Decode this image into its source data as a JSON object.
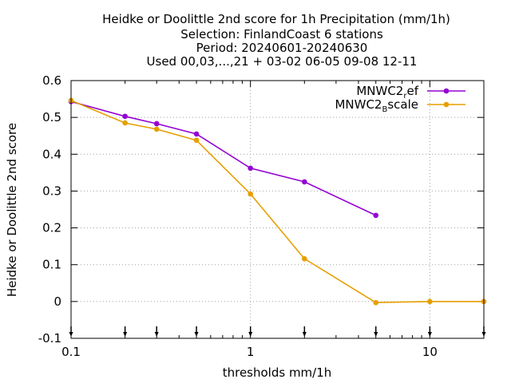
{
  "chart_data": {
    "type": "line",
    "title_lines": [
      "Heidke or Doolittle 2nd score  for 1h Precipitation (mm/1h)",
      "Selection: FinlandCoast      6 stations",
      "Period: 20240601-20240630",
      "Used 00,03,...,21 + 03-02 06-05 09-08 12-11"
    ],
    "xlabel": "thresholds mm/1h",
    "ylabel": "Heidke or Doolittle 2nd score",
    "x_scale": "log",
    "xlim": [
      0.1,
      20
    ],
    "ylim": [
      -0.1,
      0.6
    ],
    "x_ticks": [
      {
        "value": 0.1,
        "label": "0.1"
      },
      {
        "value": 1,
        "label": "1"
      },
      {
        "value": 10,
        "label": "10"
      }
    ],
    "y_ticks": [
      {
        "value": 0.6,
        "label": "0.6"
      },
      {
        "value": 0.5,
        "label": "0.5"
      },
      {
        "value": 0.4,
        "label": "0.4"
      },
      {
        "value": 0.3,
        "label": "0.3"
      },
      {
        "value": 0.2,
        "label": "0.2"
      },
      {
        "value": 0.1,
        "label": "0.1"
      },
      {
        "value": 0,
        "label": "0"
      },
      {
        "value": -0.1,
        "label": "-0.1"
      }
    ],
    "grid": true,
    "legend_position": "top-right",
    "threshold_markers": [
      0.1,
      0.2,
      0.3,
      0.5,
      1,
      2,
      5,
      10,
      20
    ],
    "series": [
      {
        "legend": {
          "main": "MNWC2",
          "sub": "r",
          "tail": "ef"
        },
        "color": "#9400d3",
        "x": [
          0.1,
          0.2,
          0.3,
          0.5,
          1,
          2,
          5
        ],
        "y": [
          0.543,
          0.503,
          0.483,
          0.455,
          0.362,
          0.325,
          0.234
        ]
      },
      {
        "legend": {
          "main": "MNWC2",
          "sub": "B",
          "tail": "scale"
        },
        "color": "#e69f00",
        "x": [
          0.1,
          0.2,
          0.3,
          0.5,
          1,
          2,
          5,
          10,
          20
        ],
        "y": [
          0.546,
          0.485,
          0.468,
          0.438,
          0.292,
          0.116,
          -0.003,
          0.0,
          0.0
        ]
      }
    ]
  }
}
